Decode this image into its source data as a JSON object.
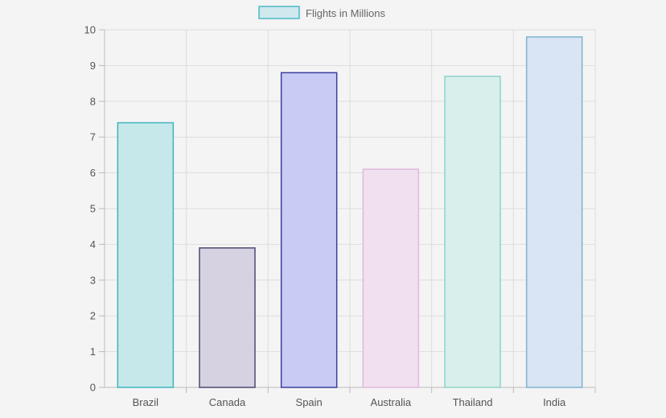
{
  "chart_data": {
    "type": "bar",
    "title": "",
    "xlabel": "",
    "ylabel": "",
    "categories": [
      "Brazil",
      "Canada",
      "Spain",
      "Australia",
      "Thailand",
      "India"
    ],
    "series": [
      {
        "name": "Flights in Millions",
        "values": [
          7.4,
          3.9,
          8.8,
          6.1,
          8.7,
          9.8
        ]
      }
    ],
    "ylim": [
      0,
      10
    ],
    "yticks": [
      0,
      1,
      2,
      3,
      4,
      5,
      6,
      7,
      8,
      9,
      10
    ],
    "grid": true,
    "legend_position": "top-center",
    "colors": {
      "legend_fill": "#cfe9ee",
      "legend_stroke": "#4fb9c6",
      "bars": [
        {
          "fill": "#c6e8ea",
          "stroke": "#3fb3bd"
        },
        {
          "fill": "#d6d2e2",
          "stroke": "#4b4a6e"
        },
        {
          "fill": "#c8cbf3",
          "stroke": "#3a3f9e"
        },
        {
          "fill": "#f1e0ef",
          "stroke": "#e2b8dc"
        },
        {
          "fill": "#d8efec",
          "stroke": "#8fd3c8"
        },
        {
          "fill": "#d9e5f4",
          "stroke": "#7fb3d0"
        }
      ],
      "grid": "#dddddd",
      "axis": "#bbbbbb"
    }
  }
}
